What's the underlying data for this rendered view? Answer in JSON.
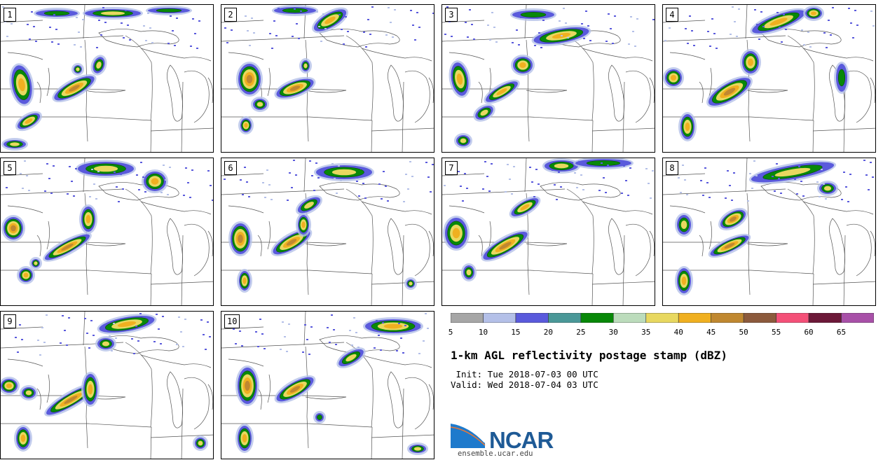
{
  "product_title": "1-km AGL reflectivity postage stamp (dBZ)",
  "init_text": " Init: Tue 2018-07-03 00 UTC",
  "valid_text": "Valid: Wed 2018-07-04 03 UTC",
  "logo_name": "NCAR",
  "logo_url": "ensemble.ucar.edu",
  "members": [
    "1",
    "2",
    "3",
    "4",
    "5",
    "6",
    "7",
    "8",
    "9",
    "10"
  ],
  "colorbar": {
    "units": "dBZ",
    "ticks": [
      "5",
      "10",
      "15",
      "20",
      "25",
      "30",
      "35",
      "40",
      "45",
      "50",
      "55",
      "60",
      "65"
    ],
    "colors": [
      "#a6a6a6",
      "#b4c0e8",
      "#5a5adc",
      "#4a9898",
      "#088808",
      "#bcdcbc",
      "#e8d860",
      "#f0b020",
      "#c08830",
      "#8c5a3c",
      "#f45078",
      "#6c1838",
      "#a850a8"
    ]
  }
}
